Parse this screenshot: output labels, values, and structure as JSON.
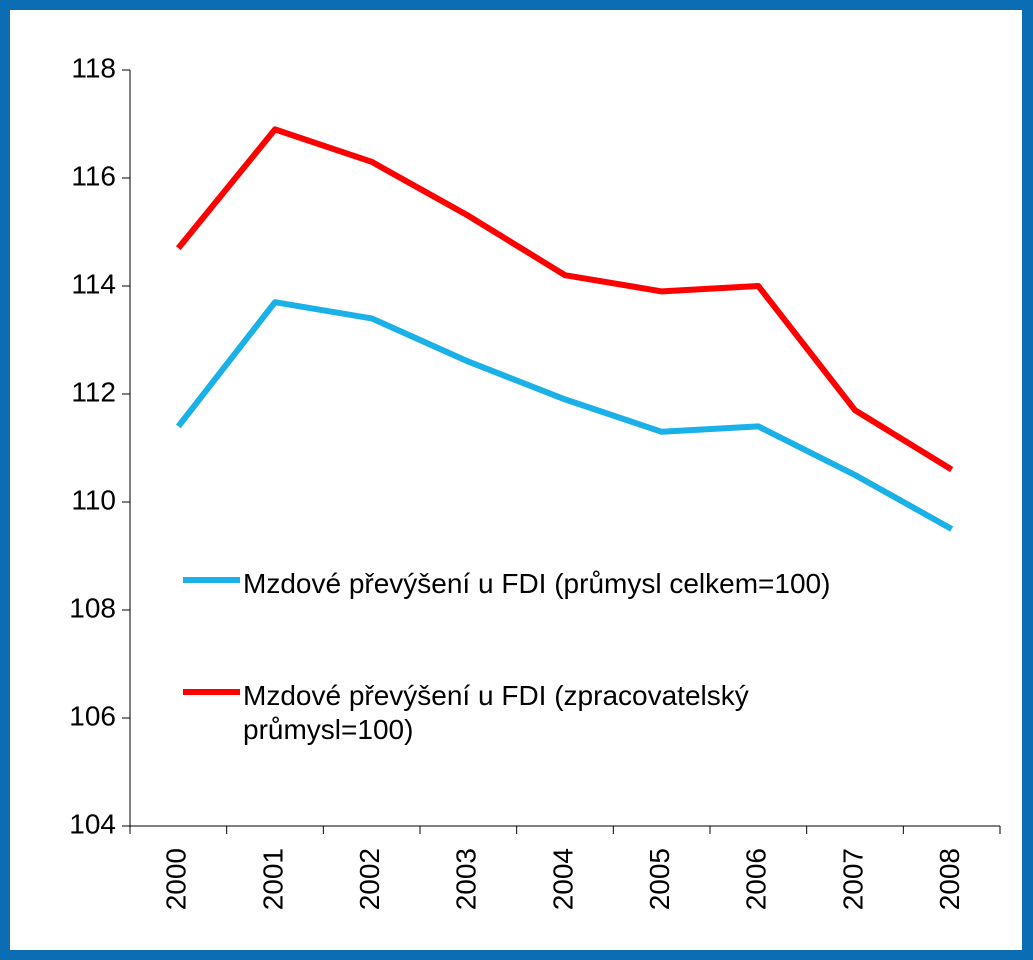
{
  "chart_data": {
    "type": "line",
    "categories": [
      "2000",
      "2001",
      "2002",
      "2003",
      "2004",
      "2005",
      "2006",
      "2007",
      "2008"
    ],
    "series": [
      {
        "name": "Mzdové převýšení u FDI (průmysl celkem=100)",
        "color": "#1ab0e8",
        "values": [
          111.4,
          113.7,
          113.4,
          112.6,
          111.9,
          111.3,
          111.4,
          110.5,
          109.5
        ]
      },
      {
        "name": "Mzdové převýšení u FDI (zpracovatelský průmysl=100)",
        "color": "#ff0000",
        "values": [
          114.7,
          116.9,
          116.3,
          115.3,
          114.2,
          113.9,
          114.0,
          111.7,
          110.6
        ]
      }
    ],
    "ylim": [
      104,
      118
    ],
    "yticks": [
      104,
      106,
      108,
      110,
      112,
      114,
      116,
      118
    ],
    "grid": false
  }
}
